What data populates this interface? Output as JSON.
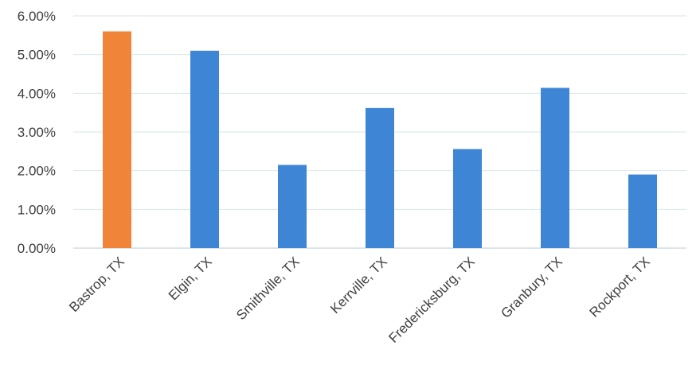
{
  "chart_data": {
    "type": "bar",
    "title": "",
    "xlabel": "",
    "ylabel": "",
    "categories": [
      "Bastrop, TX",
      "Elgin, TX",
      "Smithville, TX",
      "Kerrville, TX",
      "Fredericksburg, TX",
      "Granbury, TX",
      "Rockport, TX"
    ],
    "values": [
      5.6,
      5.1,
      2.15,
      3.62,
      2.56,
      4.14,
      1.9
    ],
    "value_format": "percent",
    "ylim": [
      0,
      6
    ],
    "yticks": [
      0,
      1,
      2,
      3,
      4,
      5,
      6
    ],
    "ytick_labels": [
      "0.00%",
      "1.00%",
      "2.00%",
      "3.00%",
      "4.00%",
      "5.00%",
      "6.00%"
    ],
    "grid": true,
    "legend": "none",
    "colors": {
      "default_bar": "#3e86d5",
      "highlight_bar": "#f0853a",
      "highlight_index": 0,
      "gridline": "#d9e6ea",
      "text": "#404040"
    }
  }
}
